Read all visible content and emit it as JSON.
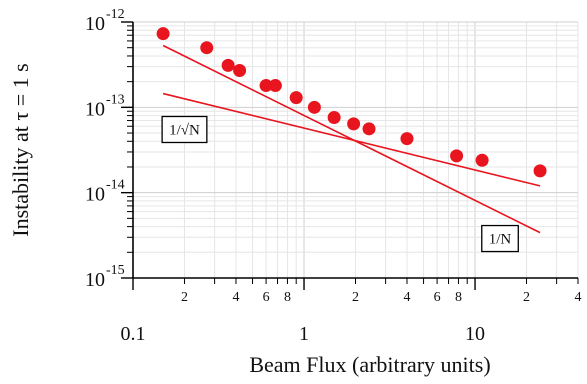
{
  "chart_data": {
    "type": "scatter",
    "title": "",
    "xlabel": "Beam Flux (arbitrary units)",
    "ylabel": "Instability at τ = 1 s",
    "x_scale": "log",
    "y_scale": "log",
    "xlim": [
      0.1,
      40
    ],
    "ylim": [
      1e-15,
      1e-12
    ],
    "grid": true,
    "x_major_ticks": [
      {
        "value": 0.1,
        "label": "0.1"
      },
      {
        "value": 1,
        "label": "1"
      },
      {
        "value": 10,
        "label": "10"
      }
    ],
    "x_minor_ticks": [
      {
        "value": 0.2,
        "label": "2"
      },
      {
        "value": 0.4,
        "label": "4"
      },
      {
        "value": 0.6,
        "label": "6"
      },
      {
        "value": 0.8,
        "label": "8"
      },
      {
        "value": 2,
        "label": "2"
      },
      {
        "value": 4,
        "label": "4"
      },
      {
        "value": 6,
        "label": "6"
      },
      {
        "value": 8,
        "label": "8"
      },
      {
        "value": 20,
        "label": "2"
      },
      {
        "value": 40,
        "label": "4"
      }
    ],
    "y_major_ticks": [
      {
        "value": 1e-15,
        "base": "10",
        "exp": "-15"
      },
      {
        "value": 1e-14,
        "base": "10",
        "exp": "-14"
      },
      {
        "value": 1e-13,
        "base": "10",
        "exp": "-13"
      },
      {
        "value": 1e-12,
        "base": "10",
        "exp": "-12"
      }
    ],
    "series": [
      {
        "color": "#e8141e",
        "points": [
          {
            "x": 0.15,
            "y": 7.3e-13
          },
          {
            "x": 0.27,
            "y": 5e-13
          },
          {
            "x": 0.36,
            "y": 3.1e-13
          },
          {
            "x": 0.42,
            "y": 2.7e-13
          },
          {
            "x": 0.6,
            "y": 1.8e-13
          },
          {
            "x": 0.68,
            "y": 1.8e-13
          },
          {
            "x": 0.9,
            "y": 1.3e-13
          },
          {
            "x": 1.15,
            "y": 1e-13
          },
          {
            "x": 1.5,
            "y": 7.6e-14
          },
          {
            "x": 1.95,
            "y": 6.4e-14
          },
          {
            "x": 2.4,
            "y": 5.6e-14
          },
          {
            "x": 4.0,
            "y": 4.3e-14
          },
          {
            "x": 7.8,
            "y": 2.7e-14
          },
          {
            "x": 11.0,
            "y": 2.4e-14
          },
          {
            "x": 24.0,
            "y": 1.8e-14
          }
        ]
      }
    ],
    "fit_lines": [
      {
        "label": "1/√N",
        "color": "#e8141e",
        "x": [
          0.15,
          24
        ],
        "y": [
          1.45e-13,
          1.2e-14
        ],
        "label_at": {
          "x": 0.2,
          "y": 5.5e-14
        }
      },
      {
        "label": "1/N",
        "color": "#e8141e",
        "x": [
          0.15,
          24
        ],
        "y": [
          5.3e-13,
          3.4e-15
        ],
        "label_at": {
          "x": 14,
          "y": 2.9e-15
        }
      }
    ]
  }
}
